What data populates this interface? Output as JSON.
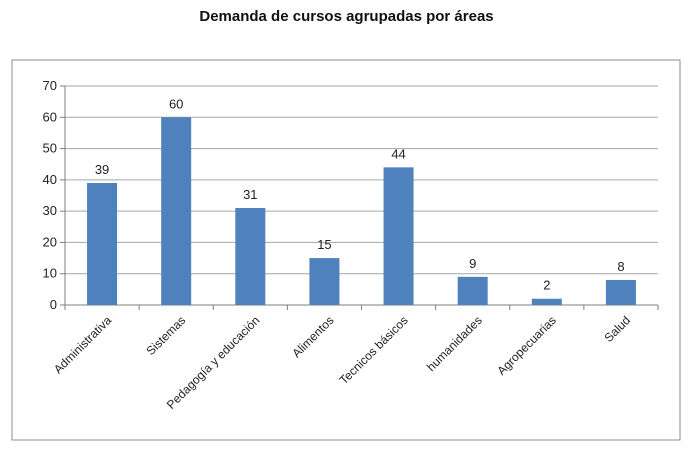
{
  "chart_data": {
    "type": "bar",
    "title": "Demanda de cursos agrupadas por áreas",
    "xlabel": "",
    "ylabel": "",
    "categories": [
      "Administrativa",
      "Sistemas",
      "Pedagogía y educación",
      "Alimentos",
      "Tecnicos básicos",
      "humanidades",
      "Agropecuarias",
      "Salud"
    ],
    "values": [
      39,
      60,
      31,
      15,
      44,
      9,
      2,
      8
    ],
    "ylim": [
      0,
      70
    ],
    "yticks": [
      0,
      10,
      20,
      30,
      40,
      50,
      60,
      70
    ],
    "grid": true,
    "legend": "none",
    "bar_color": "#4f81bd"
  }
}
